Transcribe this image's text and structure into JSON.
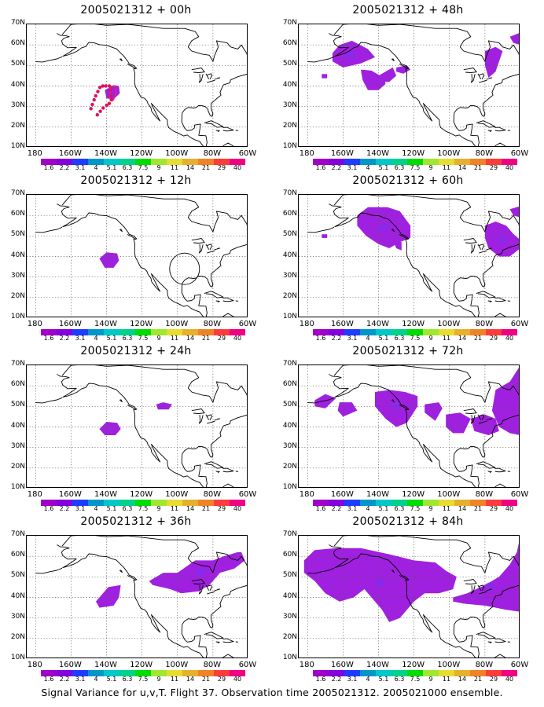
{
  "lat_labels": [
    "70N",
    "60N",
    "50N",
    "40N",
    "30N",
    "20N",
    "10N"
  ],
  "lon_labels": [
    "180",
    "160W",
    "140W",
    "120W",
    "100W",
    "80W",
    "60W"
  ],
  "colorbar": {
    "labels": [
      "1.6",
      "2.2",
      "3.1",
      "4",
      "5.1",
      "6.3",
      "7.5",
      "9",
      "11",
      "14",
      "21",
      "29",
      "40"
    ],
    "colors": [
      "#a000c8",
      "#8200dc",
      "#1e3cff",
      "#0096c8",
      "#00c8c8",
      "#00d28c",
      "#00dc00",
      "#a0e632",
      "#e6dc32",
      "#e6af2d",
      "#f08228",
      "#fa3c3c",
      "#f00082"
    ]
  },
  "fill_color": "#a020e0",
  "panels": [
    {
      "title": "2005021312 + 00h"
    },
    {
      "title": "2005021312 + 48h"
    },
    {
      "title": "2005021312 + 12h"
    },
    {
      "title": "2005021312 + 60h"
    },
    {
      "title": "2005021312 + 24h"
    },
    {
      "title": "2005021312 + 72h"
    },
    {
      "title": "2005021312 + 36h"
    },
    {
      "title": "2005021312 + 84h"
    }
  ],
  "caption": "Signal Variance for u,v,T. Flight 37. Observation time 2005021312. 2005021000 ensemble."
}
